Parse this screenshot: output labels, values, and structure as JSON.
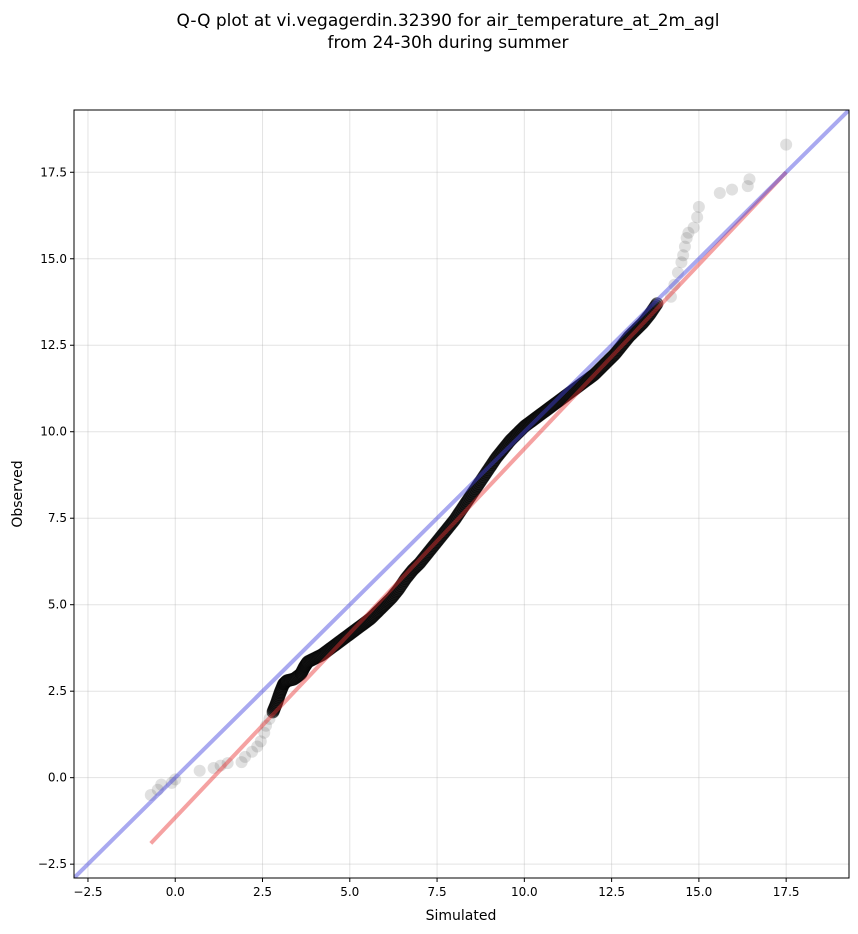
{
  "chart_data": {
    "type": "scatter",
    "title_lines": [
      "Q-Q plot at vi.vegagerdin.32390 for air_temperature_at_2m_agl",
      "from 24-30h during summer"
    ],
    "xlabel": "Simulated",
    "ylabel": "Observed",
    "xlim": [
      -2.9,
      19.3
    ],
    "ylim": [
      -2.9,
      19.3
    ],
    "xticks": [
      -2.5,
      0.0,
      2.5,
      5.0,
      7.5,
      10.0,
      12.5,
      15.0,
      17.5
    ],
    "yticks": [
      -2.5,
      0.0,
      2.5,
      5.0,
      7.5,
      10.0,
      12.5,
      15.0,
      17.5
    ],
    "xtick_labels": [
      "−2.5",
      "0.0",
      "2.5",
      "5.0",
      "7.5",
      "10.0",
      "12.5",
      "15.0",
      "17.5"
    ],
    "ytick_labels": [
      "−2.5",
      "0.0",
      "2.5",
      "5.0",
      "7.5",
      "10.0",
      "12.5",
      "15.0",
      "17.5"
    ],
    "grid": true,
    "identity_line": {
      "from": [
        -2.9,
        -2.9
      ],
      "to": [
        19.3,
        19.3
      ],
      "color": "#4040dd"
    },
    "fit_line": {
      "from": [
        -0.7,
        -1.9
      ],
      "to": [
        17.5,
        17.5
      ],
      "color": "#e83030"
    },
    "point_color": "#555555",
    "tail_points": [
      [
        -0.7,
        -0.5
      ],
      [
        -0.5,
        -0.35
      ],
      [
        -0.4,
        -0.2
      ],
      [
        -0.1,
        -0.15
      ],
      [
        0.0,
        -0.05
      ],
      [
        0.7,
        0.2
      ],
      [
        1.1,
        0.28
      ],
      [
        1.3,
        0.35
      ],
      [
        1.5,
        0.42
      ],
      [
        1.9,
        0.45
      ],
      [
        2.0,
        0.6
      ],
      [
        2.2,
        0.75
      ],
      [
        2.35,
        0.9
      ],
      [
        2.45,
        1.05
      ],
      [
        2.55,
        1.3
      ],
      [
        2.6,
        1.5
      ],
      [
        2.7,
        1.7
      ],
      [
        14.2,
        13.9
      ],
      [
        14.3,
        14.25
      ],
      [
        14.4,
        14.6
      ],
      [
        14.5,
        14.9
      ],
      [
        14.55,
        15.1
      ],
      [
        14.6,
        15.35
      ],
      [
        14.65,
        15.6
      ],
      [
        14.7,
        15.75
      ],
      [
        14.85,
        15.9
      ],
      [
        14.95,
        16.2
      ],
      [
        15.0,
        16.5
      ],
      [
        15.6,
        16.9
      ],
      [
        15.95,
        17.0
      ],
      [
        16.4,
        17.1
      ],
      [
        16.45,
        17.3
      ],
      [
        17.5,
        18.3
      ]
    ],
    "core_points": [
      [
        2.8,
        1.9
      ],
      [
        2.9,
        2.15
      ],
      [
        3.0,
        2.45
      ],
      [
        3.1,
        2.7
      ],
      [
        3.2,
        2.8
      ],
      [
        3.4,
        2.85
      ],
      [
        3.6,
        3.0
      ],
      [
        3.7,
        3.2
      ],
      [
        3.8,
        3.35
      ],
      [
        4.0,
        3.45
      ],
      [
        4.2,
        3.55
      ],
      [
        4.4,
        3.7
      ],
      [
        4.6,
        3.85
      ],
      [
        4.8,
        4.0
      ],
      [
        5.0,
        4.15
      ],
      [
        5.2,
        4.3
      ],
      [
        5.4,
        4.45
      ],
      [
        5.6,
        4.6
      ],
      [
        5.8,
        4.8
      ],
      [
        6.0,
        5.0
      ],
      [
        6.2,
        5.2
      ],
      [
        6.4,
        5.45
      ],
      [
        6.6,
        5.75
      ],
      [
        6.8,
        6.0
      ],
      [
        7.0,
        6.2
      ],
      [
        7.2,
        6.45
      ],
      [
        7.4,
        6.7
      ],
      [
        7.6,
        6.95
      ],
      [
        7.8,
        7.2
      ],
      [
        8.0,
        7.45
      ],
      [
        8.2,
        7.75
      ],
      [
        8.4,
        8.05
      ],
      [
        8.6,
        8.35
      ],
      [
        8.8,
        8.65
      ],
      [
        9.0,
        8.95
      ],
      [
        9.2,
        9.25
      ],
      [
        9.4,
        9.5
      ],
      [
        9.6,
        9.75
      ],
      [
        9.8,
        9.95
      ],
      [
        10.0,
        10.15
      ],
      [
        10.2,
        10.3
      ],
      [
        10.4,
        10.45
      ],
      [
        10.6,
        10.6
      ],
      [
        10.8,
        10.75
      ],
      [
        11.0,
        10.9
      ],
      [
        11.2,
        11.05
      ],
      [
        11.4,
        11.2
      ],
      [
        11.6,
        11.35
      ],
      [
        11.8,
        11.5
      ],
      [
        12.0,
        11.65
      ],
      [
        12.2,
        11.85
      ],
      [
        12.4,
        12.05
      ],
      [
        12.6,
        12.25
      ],
      [
        12.8,
        12.5
      ],
      [
        13.0,
        12.75
      ],
      [
        13.2,
        12.95
      ],
      [
        13.4,
        13.15
      ],
      [
        13.6,
        13.4
      ],
      [
        13.8,
        13.7
      ]
    ]
  }
}
